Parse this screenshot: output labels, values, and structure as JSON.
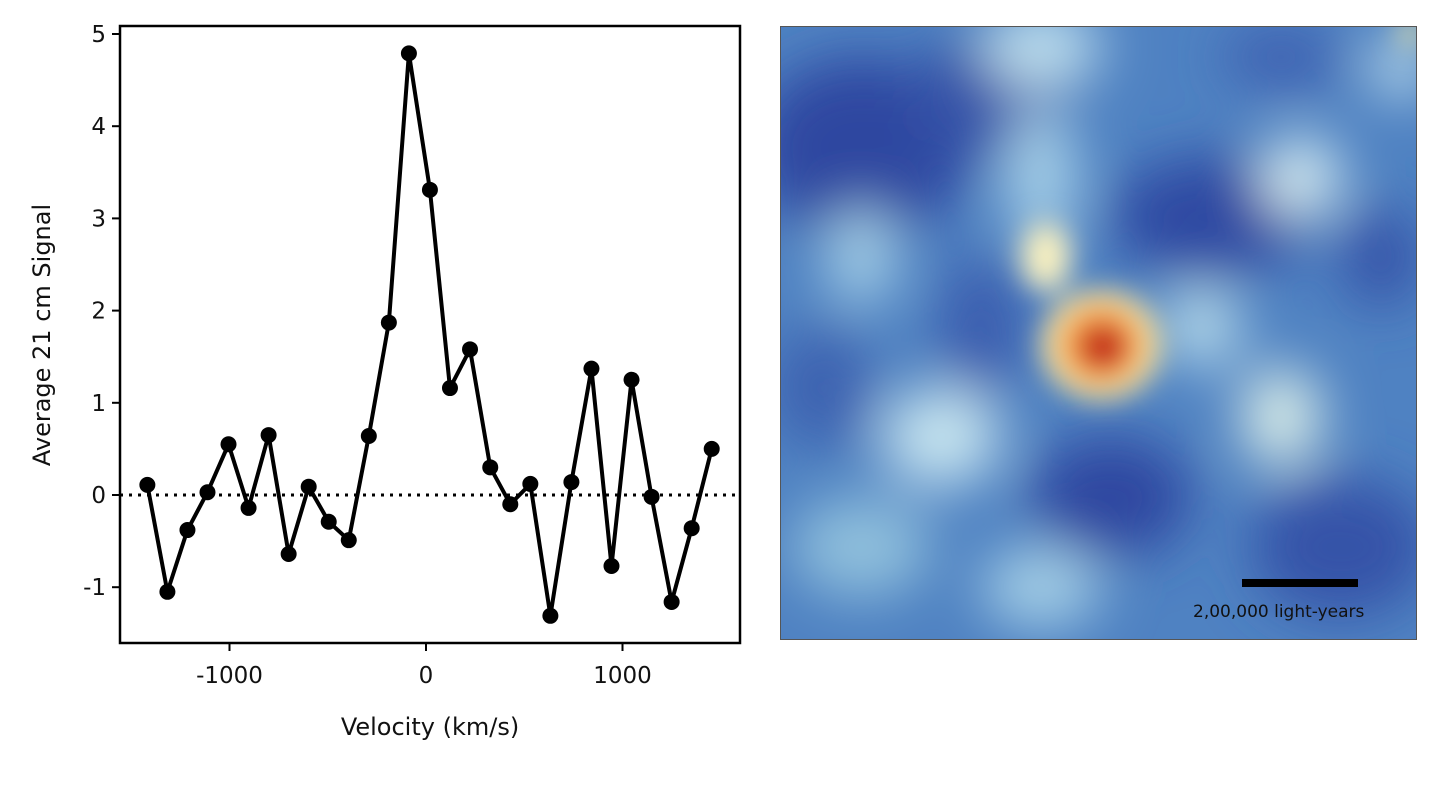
{
  "chart_data": [
    {
      "type": "line",
      "xlabel": "Velocity (km/s)",
      "ylabel": "Average 21 cm Signal",
      "xlim": [
        -1550,
        1600
      ],
      "ylim": [
        -1.6,
        5.1
      ],
      "xticks": [
        -1000,
        0,
        1000
      ],
      "yticks": [
        5,
        4,
        3,
        2,
        1,
        0,
        -1
      ],
      "grid": false,
      "reference_line": {
        "y": 0,
        "style": "dotted"
      },
      "series": [
        {
          "color": "#000000",
          "marker": "circle",
          "x": [
            -1418,
            -1316,
            -1214,
            -1112,
            -1005,
            -903,
            -801,
            -699,
            -597,
            -495,
            -393,
            -291,
            -189,
            -87,
            20,
            122,
            224,
            327,
            429,
            531,
            633,
            740,
            842,
            944,
            1046,
            1148,
            1250,
            1352,
            1454
          ],
          "y": [
            0.11,
            -1.05,
            -0.38,
            0.03,
            0.55,
            -0.14,
            0.65,
            -0.64,
            0.09,
            -0.29,
            -0.49,
            0.64,
            1.87,
            4.79,
            3.31,
            1.16,
            1.58,
            0.3,
            -0.1,
            0.12,
            -1.31,
            0.14,
            1.37,
            -0.77,
            1.25,
            -0.02,
            -1.16,
            -0.36,
            0.5
          ]
        }
      ]
    },
    {
      "type": "heatmap",
      "colormap": [
        "#2b3f9a",
        "#4a7cc0",
        "#cfe8f0",
        "#fdf3b0",
        "#f5a040",
        "#c01a1a"
      ],
      "scale_bar_label": "2,00,000 light-years"
    }
  ]
}
